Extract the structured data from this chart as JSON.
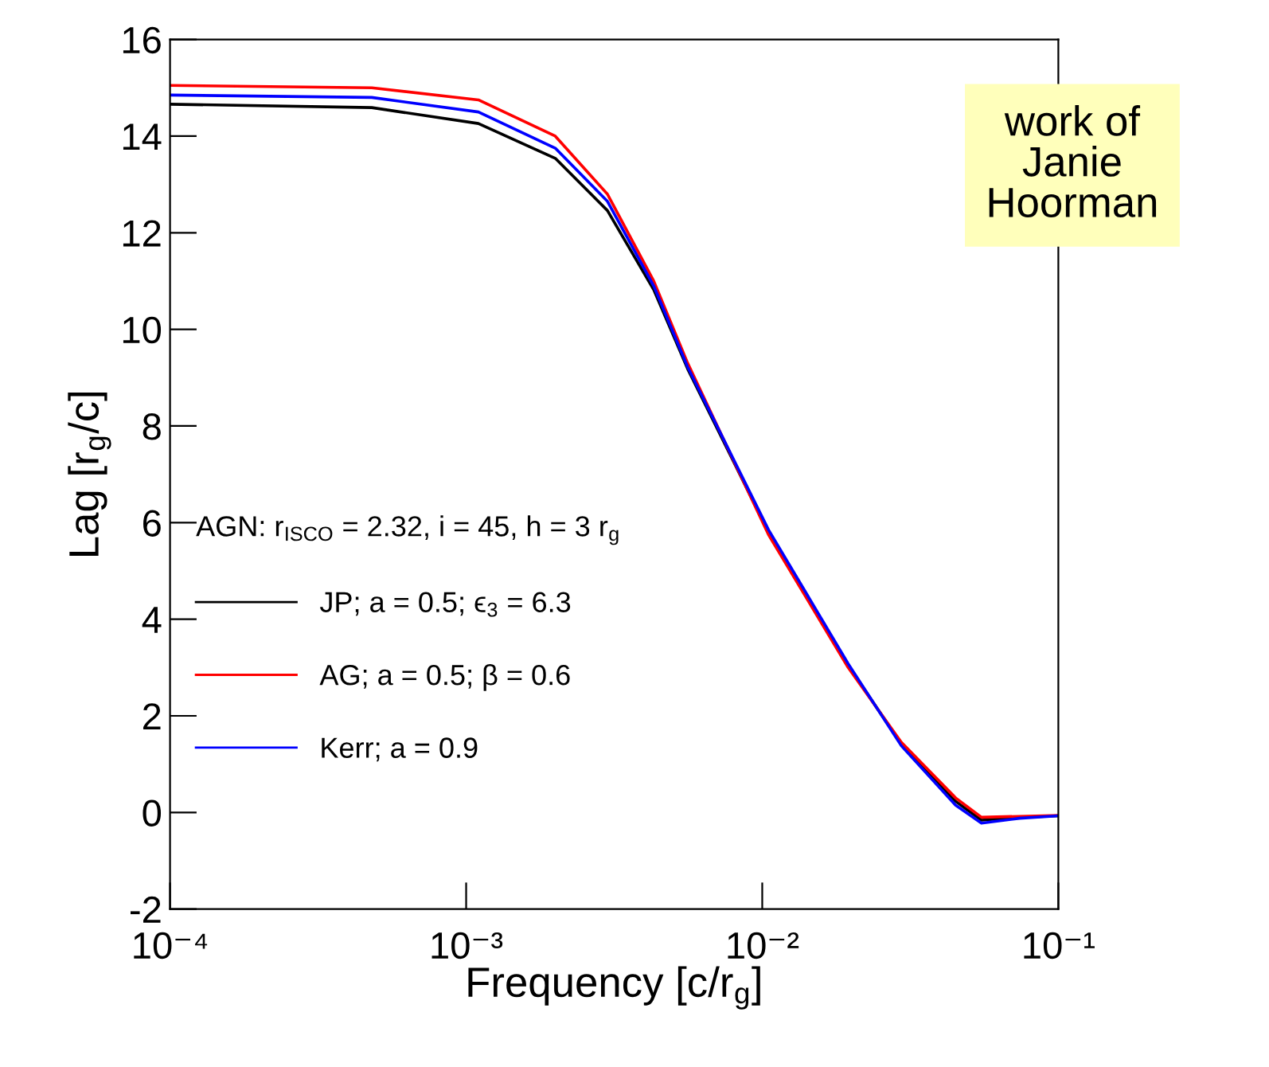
{
  "chart_data": {
    "type": "line",
    "xlabel": "Frequency [c/r$_{g}$]",
    "ylabel": "Lag [r$_{g}$/c]",
    "legend_title": "AGN: r$_{ISCO}$ = 2.32, i = 45, h = 3 r$_{g}$",
    "log": "x",
    "xlim": [
      0.0001,
      0.1
    ],
    "xticks": [
      {
        "value": 0.0001,
        "label": "10⁻⁴"
      },
      {
        "value": 0.001,
        "label": "10⁻³"
      },
      {
        "value": 0.01,
        "label": "10⁻²"
      },
      {
        "value": 0.1,
        "label": "10⁻¹"
      }
    ],
    "ylim": [
      -2,
      16
    ],
    "yticks": [
      -2,
      0,
      2,
      4,
      6,
      8,
      10,
      12,
      14,
      16
    ],
    "x": [
      0.0001,
      0.00048,
      0.0011,
      0.002,
      0.003,
      0.0043,
      0.0056,
      0.0105,
      0.0195,
      0.0295,
      0.045,
      0.055,
      0.074,
      0.1
    ],
    "series": [
      {
        "name": "JP; a = 0.5; ϵ$_{3}$ = 6.3",
        "color": "#000000",
        "values": [
          14.66,
          14.59,
          14.26,
          13.54,
          12.46,
          10.82,
          9.18,
          5.8,
          3.05,
          1.41,
          0.23,
          -0.16,
          -0.1,
          -0.07
        ]
      },
      {
        "name": "AG; a = 0.5; β = 0.6",
        "color": "#ff0000",
        "values": [
          15.05,
          15.0,
          14.75,
          14.0,
          12.8,
          11.0,
          9.3,
          5.75,
          3.0,
          1.45,
          0.3,
          -0.1,
          -0.08,
          -0.06
        ]
      },
      {
        "name": "Kerr; a = 0.9",
        "color": "#0000ff",
        "values": [
          14.85,
          14.8,
          14.5,
          13.75,
          12.65,
          10.9,
          9.22,
          5.85,
          3.08,
          1.38,
          0.15,
          -0.22,
          -0.12,
          -0.07
        ]
      }
    ],
    "legend": "left",
    "grid": false,
    "marker": "none",
    "line_style": "solid",
    "annotations": [
      "work of\nJanie\nHoorman"
    ]
  }
}
